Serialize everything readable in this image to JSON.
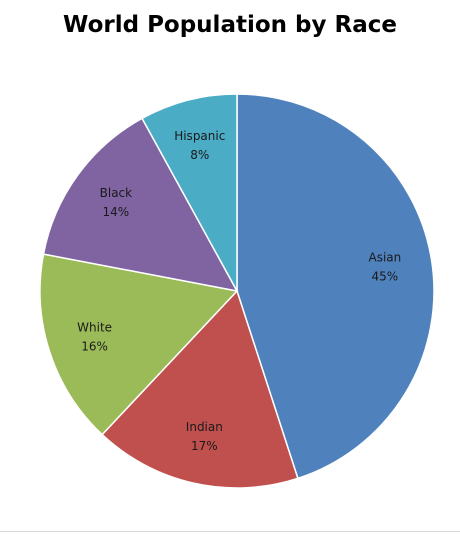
{
  "chart_data": {
    "type": "pie",
    "title": "World Population by Race",
    "slices": [
      {
        "label": "Asian",
        "value": 45,
        "value_label": "45%",
        "color": "#4F81BD"
      },
      {
        "label": "Indian",
        "value": 17,
        "value_label": "17%",
        "color": "#C0504D"
      },
      {
        "label": "White",
        "value": 16,
        "value_label": "16%",
        "color": "#9BBB59"
      },
      {
        "label": "Black",
        "value": 14,
        "value_label": "14%",
        "color": "#8064A2"
      },
      {
        "label": "Hispanic",
        "value": 8,
        "value_label": "8%",
        "color": "#4BACC6"
      }
    ],
    "start": "12 o'clock",
    "direction": "clockwise",
    "legend": "none"
  }
}
